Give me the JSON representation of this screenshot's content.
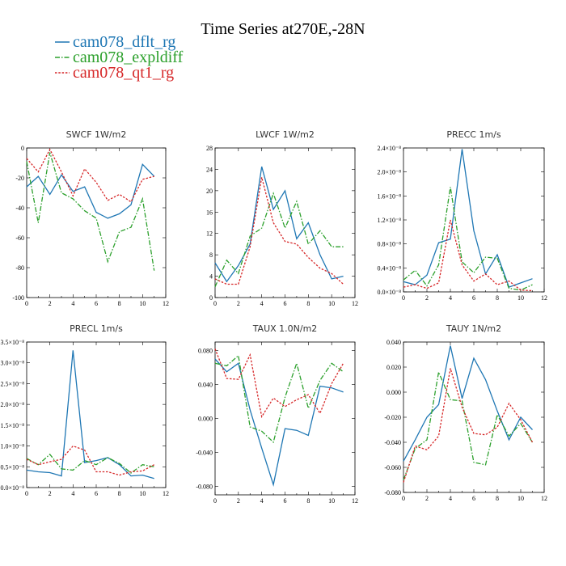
{
  "chart_data": {
    "title": "Time Series at270E,-28N",
    "legend": [
      {
        "name": "cam078_dflt_rg",
        "color": "#1f77b4",
        "dash": "solid"
      },
      {
        "name": "cam078_expldiff",
        "color": "#2ca02c",
        "dash": "dashdot"
      },
      {
        "name": "cam078_qt1_rg",
        "color": "#d62728",
        "dash": "dotted"
      }
    ],
    "panels": [
      {
        "id": "swcf",
        "type": "line",
        "title": "SWCF   1W/m2",
        "x": [
          0,
          1,
          2,
          3,
          4,
          5,
          6,
          7,
          8,
          9,
          10,
          11
        ],
        "xlim": [
          0,
          12
        ],
        "xticks": [
          0,
          2,
          4,
          6,
          8,
          10,
          12
        ],
        "ylim": [
          -100,
          0
        ],
        "yticks": [
          -100,
          -80,
          -60,
          -40,
          -20,
          0
        ],
        "ytick_labels": [
          "-100",
          "-80",
          "-60",
          "-40",
          "-20",
          "0"
        ],
        "series": [
          {
            "name": "cam078_dflt_rg",
            "values": [
              -26,
              -19,
              -31,
              -18,
              -29,
              -26,
              -43,
              -47,
              -44,
              -38,
              -11,
              -19
            ]
          },
          {
            "name": "cam078_expldiff",
            "values": [
              -9,
              -50,
              -3,
              -30,
              -34,
              -42,
              -47,
              -76,
              -56,
              -53,
              -34,
              -82
            ]
          },
          {
            "name": "cam078_qt1_rg",
            "values": [
              -7,
              -16,
              -1,
              -16,
              -32,
              -14,
              -23,
              -35,
              -31,
              -36,
              -21,
              -19
            ]
          }
        ]
      },
      {
        "id": "lwcf",
        "type": "line",
        "title": "LWCF   1W/m2",
        "x": [
          0,
          1,
          2,
          3,
          4,
          5,
          6,
          7,
          8,
          9,
          10,
          11
        ],
        "xlim": [
          0,
          12
        ],
        "xticks": [
          0,
          2,
          4,
          6,
          8,
          10,
          12
        ],
        "ylim": [
          0,
          28
        ],
        "yticks": [
          0,
          4,
          8,
          12,
          16,
          20,
          24,
          28
        ],
        "ytick_labels": [
          "0",
          "4",
          "8",
          "12",
          "16",
          "20",
          "24",
          "28"
        ],
        "series": [
          {
            "name": "cam078_dflt_rg",
            "values": [
              6.5,
              3,
              6,
              10,
              24.5,
              16.5,
              20,
              11,
              14,
              8,
              3.5,
              4
            ]
          },
          {
            "name": "cam078_expldiff",
            "values": [
              2,
              7,
              4.5,
              11.5,
              13,
              19.5,
              13,
              18,
              10,
              12.5,
              9.5,
              9.5
            ]
          },
          {
            "name": "cam078_qt1_rg",
            "values": [
              3.5,
              2.5,
              2.5,
              9.5,
              22.5,
              14,
              10.5,
              10,
              7.5,
              5.5,
              4.5,
              2.5
            ]
          }
        ]
      },
      {
        "id": "precc",
        "type": "line",
        "title": "PRECC   1m/s",
        "x": [
          0,
          1,
          2,
          3,
          4,
          5,
          6,
          7,
          8,
          9,
          10,
          11
        ],
        "xlim": [
          0,
          12
        ],
        "xticks": [
          0,
          2,
          4,
          6,
          8,
          10,
          12
        ],
        "ylim": [
          0,
          2.4
        ],
        "yticks": [
          0,
          0.4,
          0.8,
          1.2,
          1.6,
          2.0,
          2.4
        ],
        "ytick_labels": [
          "0.0×10⁻⁸",
          "0.4×10⁻⁸",
          "0.8×10⁻⁸",
          "1.2×10⁻⁸",
          "1.6×10⁻⁸",
          "2.0×10⁻⁸",
          "2.4×10⁻⁸"
        ],
        "series": [
          {
            "name": "cam078_dflt_rg",
            "values": [
              0.17,
              0.12,
              0.28,
              0.82,
              0.88,
              2.38,
              1.02,
              0.3,
              0.62,
              0.08,
              0.15,
              0.22
            ]
          },
          {
            "name": "cam078_expldiff",
            "values": [
              0.2,
              0.36,
              0.1,
              0.45,
              1.75,
              0.5,
              0.32,
              0.58,
              0.56,
              0.06,
              0.03,
              0.12
            ]
          },
          {
            "name": "cam078_qt1_rg",
            "values": [
              0.08,
              0.12,
              0.06,
              0.15,
              1.2,
              0.45,
              0.18,
              0.3,
              0.12,
              0.18,
              0.03,
              0.02
            ]
          }
        ]
      },
      {
        "id": "precl",
        "type": "line",
        "title": "PRECL   1m/s",
        "x": [
          0,
          1,
          2,
          3,
          4,
          5,
          6,
          7,
          8,
          9,
          10,
          11
        ],
        "xlim": [
          0,
          12
        ],
        "xticks": [
          0,
          2,
          4,
          6,
          8,
          10,
          12
        ],
        "ylim": [
          0,
          3.5
        ],
        "yticks": [
          0,
          0.5,
          1.0,
          1.5,
          2.0,
          2.5,
          3.0,
          3.5
        ],
        "ytick_labels": [
          "0.0×10⁻⁸",
          "0.5×10⁻⁸",
          "1.0×10⁻⁸",
          "1.5×10⁻⁸",
          "2.0×10⁻⁸",
          "2.5×10⁻⁸",
          "3.0×10⁻⁸",
          "3.5×10⁻⁸"
        ],
        "series": [
          {
            "name": "cam078_dflt_rg",
            "values": [
              0.42,
              0.38,
              0.36,
              0.28,
              3.3,
              0.6,
              0.65,
              0.72,
              0.55,
              0.28,
              0.3,
              0.22
            ]
          },
          {
            "name": "cam078_expldiff",
            "values": [
              0.7,
              0.55,
              0.8,
              0.45,
              0.42,
              0.65,
              0.55,
              0.72,
              0.58,
              0.35,
              0.55,
              0.5
            ]
          },
          {
            "name": "cam078_qt1_rg",
            "values": [
              0.68,
              0.55,
              0.62,
              0.68,
              1.0,
              0.9,
              0.38,
              0.38,
              0.3,
              0.38,
              0.4,
              0.55
            ]
          }
        ]
      },
      {
        "id": "taux",
        "type": "line",
        "title": "TAUX   1.0N/m2",
        "x": [
          0,
          1,
          2,
          3,
          4,
          5,
          6,
          7,
          8,
          9,
          10,
          11
        ],
        "xlim": [
          0,
          12
        ],
        "xticks": [
          0,
          2,
          4,
          6,
          8,
          10,
          12
        ],
        "ylim": [
          -0.09,
          0.09
        ],
        "yticks": [
          -0.08,
          -0.04,
          0.0,
          0.04,
          0.08
        ],
        "ytick_labels": [
          "-0.080",
          "-0.040",
          "0.000",
          "0.040",
          "0.080"
        ],
        "series": [
          {
            "name": "cam078_dflt_rg",
            "values": [
              0.07,
              0.055,
              0.065,
              0.01,
              -0.035,
              -0.078,
              -0.012,
              -0.014,
              -0.02,
              0.038,
              0.036,
              0.031
            ]
          },
          {
            "name": "cam078_expldiff",
            "values": [
              0.065,
              0.062,
              0.074,
              -0.01,
              -0.015,
              -0.028,
              0.025,
              0.065,
              0.012,
              0.045,
              0.065,
              0.055
            ]
          },
          {
            "name": "cam078_qt1_rg",
            "values": [
              0.082,
              0.047,
              0.046,
              0.075,
              0.002,
              0.024,
              0.014,
              0.022,
              0.028,
              0.006,
              0.041,
              0.065
            ]
          }
        ]
      },
      {
        "id": "tauy",
        "type": "line",
        "title": "TAUY   1N/m2",
        "x": [
          0,
          1,
          2,
          3,
          4,
          5,
          6,
          7,
          8,
          9,
          10,
          11
        ],
        "xlim": [
          0,
          12
        ],
        "xticks": [
          0,
          2,
          4,
          6,
          8,
          10,
          12
        ],
        "ylim": [
          -0.08,
          0.04
        ],
        "yticks": [
          -0.08,
          -0.06,
          -0.04,
          -0.02,
          0.0,
          0.02,
          0.04
        ],
        "ytick_labels": [
          "-0.080",
          "-0.060",
          "-0.040",
          "-0.020",
          "0.000",
          "0.020",
          "0.040"
        ],
        "series": [
          {
            "name": "cam078_dflt_rg",
            "values": [
              -0.055,
              -0.038,
              -0.02,
              -0.01,
              0.037,
              -0.005,
              0.027,
              0.01,
              -0.015,
              -0.038,
              -0.02,
              -0.03
            ]
          },
          {
            "name": "cam078_expldiff",
            "values": [
              -0.07,
              -0.045,
              -0.038,
              0.016,
              -0.006,
              -0.007,
              -0.056,
              -0.058,
              -0.018,
              -0.035,
              -0.025,
              -0.04
            ]
          },
          {
            "name": "cam078_qt1_rg",
            "values": [
              -0.072,
              -0.043,
              -0.046,
              -0.035,
              0.019,
              -0.012,
              -0.033,
              -0.034,
              -0.028,
              -0.009,
              -0.022,
              -0.04
            ]
          }
        ]
      }
    ]
  }
}
